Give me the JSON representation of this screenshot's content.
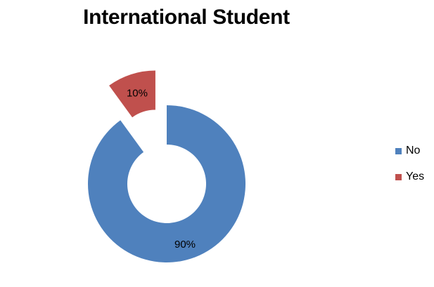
{
  "chart_data": {
    "type": "pie",
    "style": "doughnut",
    "title": "International Student",
    "categories": [
      "No",
      "Yes"
    ],
    "values": [
      90,
      10
    ],
    "labels": [
      "90%",
      "10%"
    ],
    "colors": [
      "#4f81bd",
      "#c0504d"
    ],
    "exploded": true,
    "legend": "right"
  }
}
